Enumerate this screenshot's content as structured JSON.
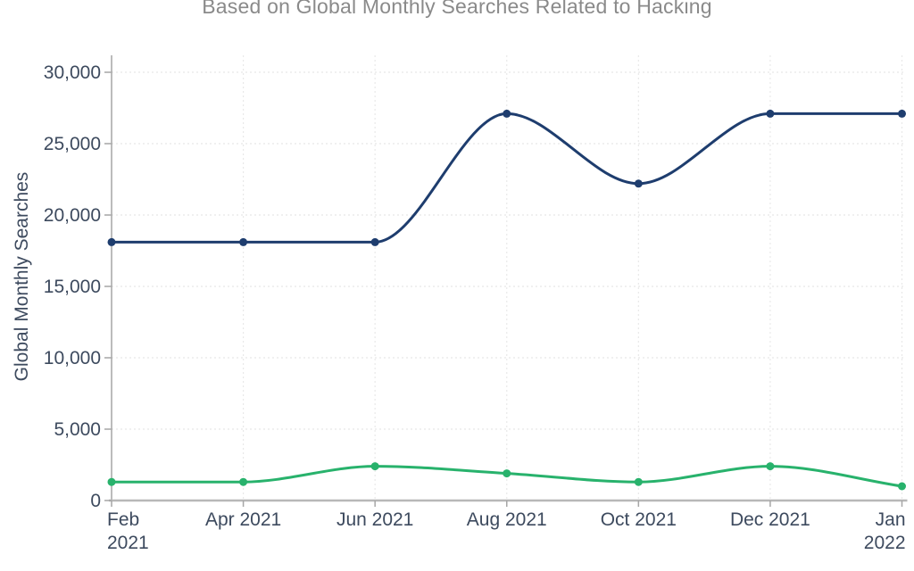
{
  "subtitle": "Based on Global Monthly Searches Related to Hacking",
  "chart_data": {
    "type": "line",
    "subtitle": "Based on Global Monthly Searches Related to Hacking",
    "categories": [
      "Feb 2021",
      "Apr 2021",
      "Jun 2021",
      "Aug 2021",
      "Oct 2021",
      "Dec 2021",
      "Jan 2022"
    ],
    "category_label_lines": [
      [
        "Feb",
        "2021"
      ],
      [
        "Apr 2021"
      ],
      [
        "Jun 2021"
      ],
      [
        "Aug 2021"
      ],
      [
        "Oct 2021"
      ],
      [
        "Dec 2021"
      ],
      [
        "Jan",
        "2022"
      ]
    ],
    "series": [
      {
        "name": "navy-series",
        "color": "#1e3d6e",
        "values": [
          18100,
          18100,
          18100,
          27100,
          22200,
          27100,
          27100
        ]
      },
      {
        "name": "green-series",
        "color": "#28b26c",
        "values": [
          1300,
          1300,
          2400,
          1900,
          1300,
          2400,
          1000
        ]
      }
    ],
    "xlabel": "",
    "ylabel": "Global Monthly Searches",
    "ylim": [
      0,
      30000
    ],
    "ytick_step": 5000,
    "ytick_labels": [
      "0",
      "5,000",
      "10,000",
      "15,000",
      "20,000",
      "25,000",
      "30,000"
    ],
    "grid": true,
    "legend": "none",
    "line_smoothing": "monotone",
    "markers": "circle"
  },
  "colors": {
    "navy_line": "#1e3d6e",
    "green_line": "#28b26c",
    "axis_text": "#3d4a5e",
    "subtitle_text": "#8a8a8a",
    "gridline": "#e8e8e8",
    "axis_line": "#a6a6a6",
    "x_axis_line": "#b8b8b8"
  }
}
